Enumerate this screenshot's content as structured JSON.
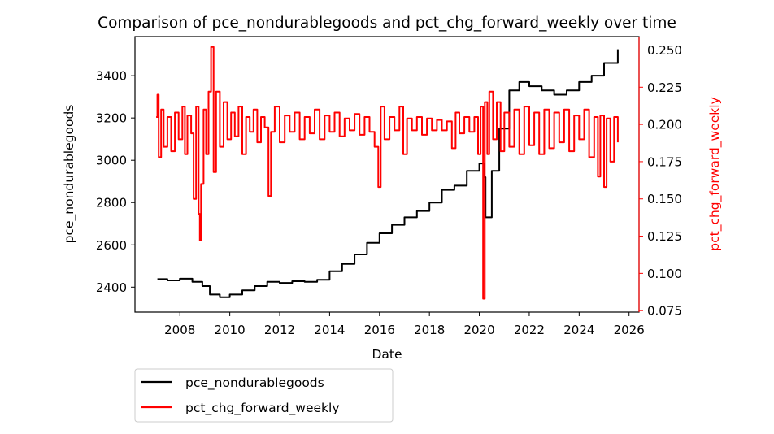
{
  "chart_data": {
    "type": "line",
    "title": "Comparison of pce_nondurablegoods and pct_chg_forward_weekly over time",
    "xlabel": "Date",
    "ylabel_left": "pce_nondurablegoods",
    "ylabel_right": "pct_chg_forward_weekly",
    "x_ticks": [
      "2008",
      "2010",
      "2012",
      "2014",
      "2016",
      "2018",
      "2020",
      "2022",
      "2024",
      "2026"
    ],
    "y_left_ticks": [
      "2400",
      "2600",
      "2800",
      "3000",
      "3200",
      "3400"
    ],
    "y_right_ticks": [
      "0.075",
      "0.100",
      "0.125",
      "0.150",
      "0.175",
      "0.200",
      "0.225",
      "0.250"
    ],
    "xlim": [
      2006.2,
      2026.4
    ],
    "ylim_left": [
      2282,
      3585
    ],
    "ylim_right": [
      0.074,
      0.259
    ],
    "grid": false,
    "legend_position": "below-left",
    "colors": {
      "left_axis": "#000000",
      "right_axis": "#ff0000"
    },
    "series": [
      {
        "name": "pce_nondurablegoods",
        "axis": "left",
        "color": "#000000",
        "points": [
          [
            2007.1,
            2438
          ],
          [
            2007.5,
            2432
          ],
          [
            2008.0,
            2440
          ],
          [
            2008.5,
            2425
          ],
          [
            2008.9,
            2405
          ],
          [
            2009.2,
            2365
          ],
          [
            2009.6,
            2352
          ],
          [
            2010.0,
            2365
          ],
          [
            2010.5,
            2385
          ],
          [
            2011.0,
            2405
          ],
          [
            2011.5,
            2425
          ],
          [
            2012.0,
            2420
          ],
          [
            2012.5,
            2428
          ],
          [
            2013.0,
            2425
          ],
          [
            2013.5,
            2435
          ],
          [
            2014.0,
            2475
          ],
          [
            2014.5,
            2510
          ],
          [
            2015.0,
            2555
          ],
          [
            2015.5,
            2610
          ],
          [
            2016.0,
            2655
          ],
          [
            2016.5,
            2695
          ],
          [
            2017.0,
            2730
          ],
          [
            2017.5,
            2760
          ],
          [
            2018.0,
            2800
          ],
          [
            2018.5,
            2860
          ],
          [
            2019.0,
            2880
          ],
          [
            2019.5,
            2950
          ],
          [
            2020.0,
            2985
          ],
          [
            2020.2,
            2920
          ],
          [
            2020.25,
            2730
          ],
          [
            2020.5,
            2950
          ],
          [
            2020.8,
            3150
          ],
          [
            2021.2,
            3330
          ],
          [
            2021.6,
            3370
          ],
          [
            2022.0,
            3350
          ],
          [
            2022.5,
            3330
          ],
          [
            2023.0,
            3310
          ],
          [
            2023.5,
            3330
          ],
          [
            2024.0,
            3370
          ],
          [
            2024.5,
            3400
          ],
          [
            2025.0,
            3460
          ],
          [
            2025.55,
            3525
          ]
        ]
      },
      {
        "name": "pct_chg_forward_weekly",
        "axis": "right",
        "color": "#ff0000",
        "points": [
          [
            2007.05,
            0.205
          ],
          [
            2007.1,
            0.22
          ],
          [
            2007.15,
            0.178
          ],
          [
            2007.25,
            0.21
          ],
          [
            2007.35,
            0.185
          ],
          [
            2007.5,
            0.205
          ],
          [
            2007.65,
            0.182
          ],
          [
            2007.8,
            0.208
          ],
          [
            2007.95,
            0.19
          ],
          [
            2008.1,
            0.212
          ],
          [
            2008.2,
            0.18
          ],
          [
            2008.3,
            0.206
          ],
          [
            2008.45,
            0.194
          ],
          [
            2008.55,
            0.15
          ],
          [
            2008.65,
            0.212
          ],
          [
            2008.75,
            0.14
          ],
          [
            2008.8,
            0.122
          ],
          [
            2008.85,
            0.16
          ],
          [
            2008.95,
            0.21
          ],
          [
            2009.05,
            0.18
          ],
          [
            2009.15,
            0.222
          ],
          [
            2009.25,
            0.252
          ],
          [
            2009.35,
            0.168
          ],
          [
            2009.45,
            0.222
          ],
          [
            2009.6,
            0.185
          ],
          [
            2009.75,
            0.215
          ],
          [
            2009.9,
            0.19
          ],
          [
            2010.05,
            0.208
          ],
          [
            2010.2,
            0.192
          ],
          [
            2010.35,
            0.212
          ],
          [
            2010.5,
            0.18
          ],
          [
            2010.65,
            0.205
          ],
          [
            2010.8,
            0.195
          ],
          [
            2010.95,
            0.21
          ],
          [
            2011.1,
            0.188
          ],
          [
            2011.25,
            0.205
          ],
          [
            2011.4,
            0.198
          ],
          [
            2011.55,
            0.152
          ],
          [
            2011.65,
            0.195
          ],
          [
            2011.8,
            0.212
          ],
          [
            2012.0,
            0.188
          ],
          [
            2012.2,
            0.206
          ],
          [
            2012.4,
            0.195
          ],
          [
            2012.6,
            0.208
          ],
          [
            2012.8,
            0.19
          ],
          [
            2013.0,
            0.205
          ],
          [
            2013.2,
            0.194
          ],
          [
            2013.4,
            0.21
          ],
          [
            2013.6,
            0.19
          ],
          [
            2013.8,
            0.206
          ],
          [
            2014.0,
            0.195
          ],
          [
            2014.2,
            0.208
          ],
          [
            2014.4,
            0.192
          ],
          [
            2014.6,
            0.204
          ],
          [
            2014.8,
            0.196
          ],
          [
            2015.0,
            0.207
          ],
          [
            2015.2,
            0.193
          ],
          [
            2015.4,
            0.205
          ],
          [
            2015.6,
            0.195
          ],
          [
            2015.8,
            0.185
          ],
          [
            2015.95,
            0.158
          ],
          [
            2016.05,
            0.212
          ],
          [
            2016.2,
            0.19
          ],
          [
            2016.4,
            0.205
          ],
          [
            2016.6,
            0.196
          ],
          [
            2016.8,
            0.212
          ],
          [
            2016.95,
            0.18
          ],
          [
            2017.1,
            0.204
          ],
          [
            2017.3,
            0.196
          ],
          [
            2017.5,
            0.205
          ],
          [
            2017.7,
            0.193
          ],
          [
            2017.9,
            0.204
          ],
          [
            2018.1,
            0.196
          ],
          [
            2018.3,
            0.203
          ],
          [
            2018.5,
            0.196
          ],
          [
            2018.7,
            0.202
          ],
          [
            2018.9,
            0.184
          ],
          [
            2019.05,
            0.208
          ],
          [
            2019.2,
            0.194
          ],
          [
            2019.4,
            0.205
          ],
          [
            2019.6,
            0.195
          ],
          [
            2019.8,
            0.205
          ],
          [
            2019.95,
            0.18
          ],
          [
            2020.05,
            0.212
          ],
          [
            2020.15,
            0.083
          ],
          [
            2020.22,
            0.215
          ],
          [
            2020.32,
            0.18
          ],
          [
            2020.4,
            0.222
          ],
          [
            2020.55,
            0.19
          ],
          [
            2020.7,
            0.215
          ],
          [
            2020.85,
            0.182
          ],
          [
            2021.0,
            0.208
          ],
          [
            2021.2,
            0.185
          ],
          [
            2021.4,
            0.21
          ],
          [
            2021.6,
            0.18
          ],
          [
            2021.8,
            0.212
          ],
          [
            2022.0,
            0.186
          ],
          [
            2022.2,
            0.208
          ],
          [
            2022.4,
            0.18
          ],
          [
            2022.6,
            0.21
          ],
          [
            2022.8,
            0.184
          ],
          [
            2023.0,
            0.208
          ],
          [
            2023.2,
            0.188
          ],
          [
            2023.4,
            0.21
          ],
          [
            2023.6,
            0.182
          ],
          [
            2023.8,
            0.206
          ],
          [
            2024.0,
            0.19
          ],
          [
            2024.2,
            0.21
          ],
          [
            2024.4,
            0.178
          ],
          [
            2024.6,
            0.205
          ],
          [
            2024.75,
            0.165
          ],
          [
            2024.85,
            0.206
          ],
          [
            2025.0,
            0.158
          ],
          [
            2025.1,
            0.204
          ],
          [
            2025.25,
            0.175
          ],
          [
            2025.4,
            0.205
          ],
          [
            2025.55,
            0.188
          ]
        ]
      }
    ]
  }
}
